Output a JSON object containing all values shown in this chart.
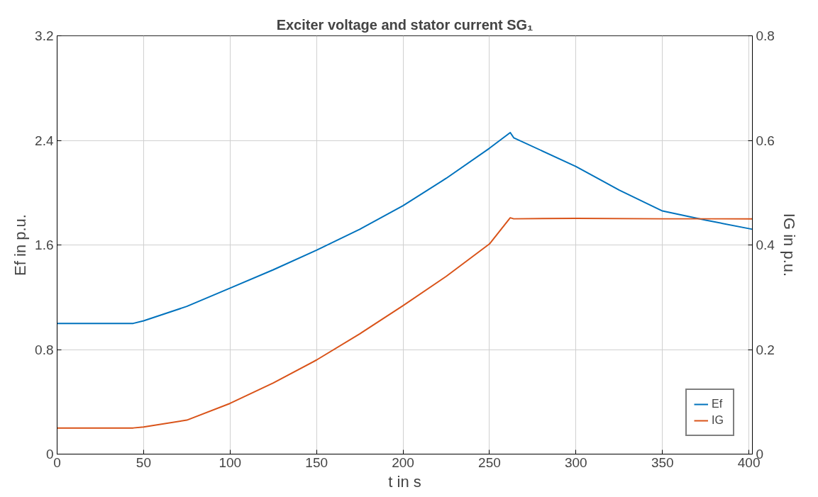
{
  "chart_data": {
    "type": "line",
    "title": "Exciter voltage and stator current SG₁",
    "xlabel": "t in s",
    "ylabel": "Ef in p.u.",
    "y2label": "IG in p.u.",
    "xlim": [
      0,
      402
    ],
    "xticks": [
      0,
      50,
      100,
      150,
      200,
      250,
      300,
      350,
      400
    ],
    "ylim": [
      0,
      3.2
    ],
    "yticks": [
      0,
      0.8,
      1.6,
      2.4,
      3.2
    ],
    "y2lim": [
      0,
      0.8
    ],
    "y2ticks": [
      0,
      0.2,
      0.4,
      0.6,
      0.8
    ],
    "grid": true,
    "legend": "bottom right",
    "line_style": "solid",
    "series": [
      {
        "name": "Ef",
        "color": "#0072bd",
        "x": [
          0,
          44,
          50,
          75,
          100,
          125,
          150,
          175,
          200,
          225,
          250,
          262,
          264,
          300,
          325,
          350,
          375,
          402
        ],
        "values": [
          1.0,
          1.0,
          1.02,
          1.13,
          1.27,
          1.41,
          1.56,
          1.72,
          1.9,
          2.11,
          2.34,
          2.46,
          2.42,
          2.2,
          2.02,
          1.86,
          1.79,
          1.72
        ]
      },
      {
        "name": "IG",
        "color": "#d95319",
        "axis": "y2",
        "x": [
          0,
          44,
          50,
          75,
          100,
          125,
          150,
          175,
          200,
          225,
          250,
          262,
          264,
          300,
          350,
          402
        ],
        "values": [
          0.05,
          0.05,
          0.052,
          0.065,
          0.097,
          0.136,
          0.18,
          0.23,
          0.284,
          0.34,
          0.402,
          0.452,
          0.45,
          0.451,
          0.45,
          0.45
        ]
      }
    ]
  }
}
